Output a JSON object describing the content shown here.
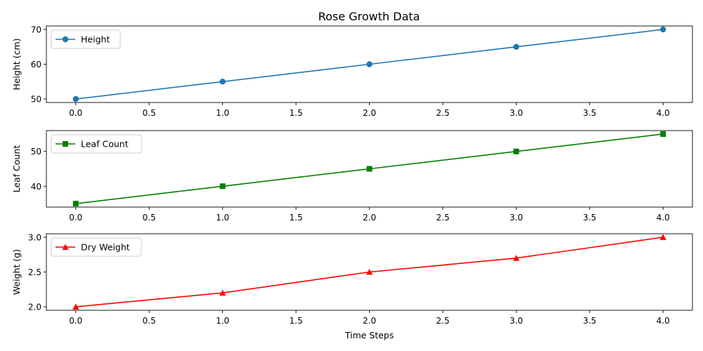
{
  "figure_title": "Rose Growth Data",
  "chart_data": [
    {
      "type": "line",
      "ylabel": "Height (cm)",
      "xlabel": "",
      "x": [
        0,
        1,
        2,
        3,
        4
      ],
      "xlim": [
        -0.2,
        4.2
      ],
      "ylim": [
        49,
        71
      ],
      "xticks": [
        0.0,
        0.5,
        1.0,
        1.5,
        2.0,
        2.5,
        3.0,
        3.5,
        4.0
      ],
      "xtick_labels": [
        "0.0",
        "0.5",
        "1.0",
        "1.5",
        "2.0",
        "2.5",
        "3.0",
        "3.5",
        "4.0"
      ],
      "yticks": [
        50,
        60,
        70
      ],
      "ytick_labels": [
        "50",
        "60",
        "70"
      ],
      "grid": false,
      "legend_position": "top-left",
      "series": [
        {
          "name": "Height",
          "values": [
            50,
            55,
            60,
            65,
            70
          ],
          "color": "#1f77b4",
          "marker": "circle"
        }
      ]
    },
    {
      "type": "line",
      "ylabel": "Leaf Count",
      "xlabel": "",
      "x": [
        0,
        1,
        2,
        3,
        4
      ],
      "xlim": [
        -0.2,
        4.2
      ],
      "ylim": [
        34,
        56
      ],
      "xticks": [
        0.0,
        0.5,
        1.0,
        1.5,
        2.0,
        2.5,
        3.0,
        3.5,
        4.0
      ],
      "xtick_labels": [
        "0.0",
        "0.5",
        "1.0",
        "1.5",
        "2.0",
        "2.5",
        "3.0",
        "3.5",
        "4.0"
      ],
      "yticks": [
        40,
        50
      ],
      "ytick_labels": [
        "40",
        "50"
      ],
      "grid": false,
      "legend_position": "top-left",
      "series": [
        {
          "name": "Leaf Count",
          "values": [
            35,
            40,
            45,
            50,
            55
          ],
          "color": "#008000",
          "marker": "square"
        }
      ]
    },
    {
      "type": "line",
      "ylabel": "Weight (g)",
      "xlabel": "Time Steps",
      "x": [
        0,
        1,
        2,
        3,
        4
      ],
      "xlim": [
        -0.2,
        4.2
      ],
      "ylim": [
        1.95,
        3.05
      ],
      "xticks": [
        0.0,
        0.5,
        1.0,
        1.5,
        2.0,
        2.5,
        3.0,
        3.5,
        4.0
      ],
      "xtick_labels": [
        "0.0",
        "0.5",
        "1.0",
        "1.5",
        "2.0",
        "2.5",
        "3.0",
        "3.5",
        "4.0"
      ],
      "yticks": [
        2.0,
        2.5,
        3.0
      ],
      "ytick_labels": [
        "2.0",
        "2.5",
        "3.0"
      ],
      "grid": false,
      "legend_position": "top-left",
      "series": [
        {
          "name": "Dry Weight",
          "values": [
            2.0,
            2.2,
            2.5,
            2.7,
            3.0
          ],
          "color": "#ff0000",
          "marker": "triangle"
        }
      ]
    }
  ]
}
